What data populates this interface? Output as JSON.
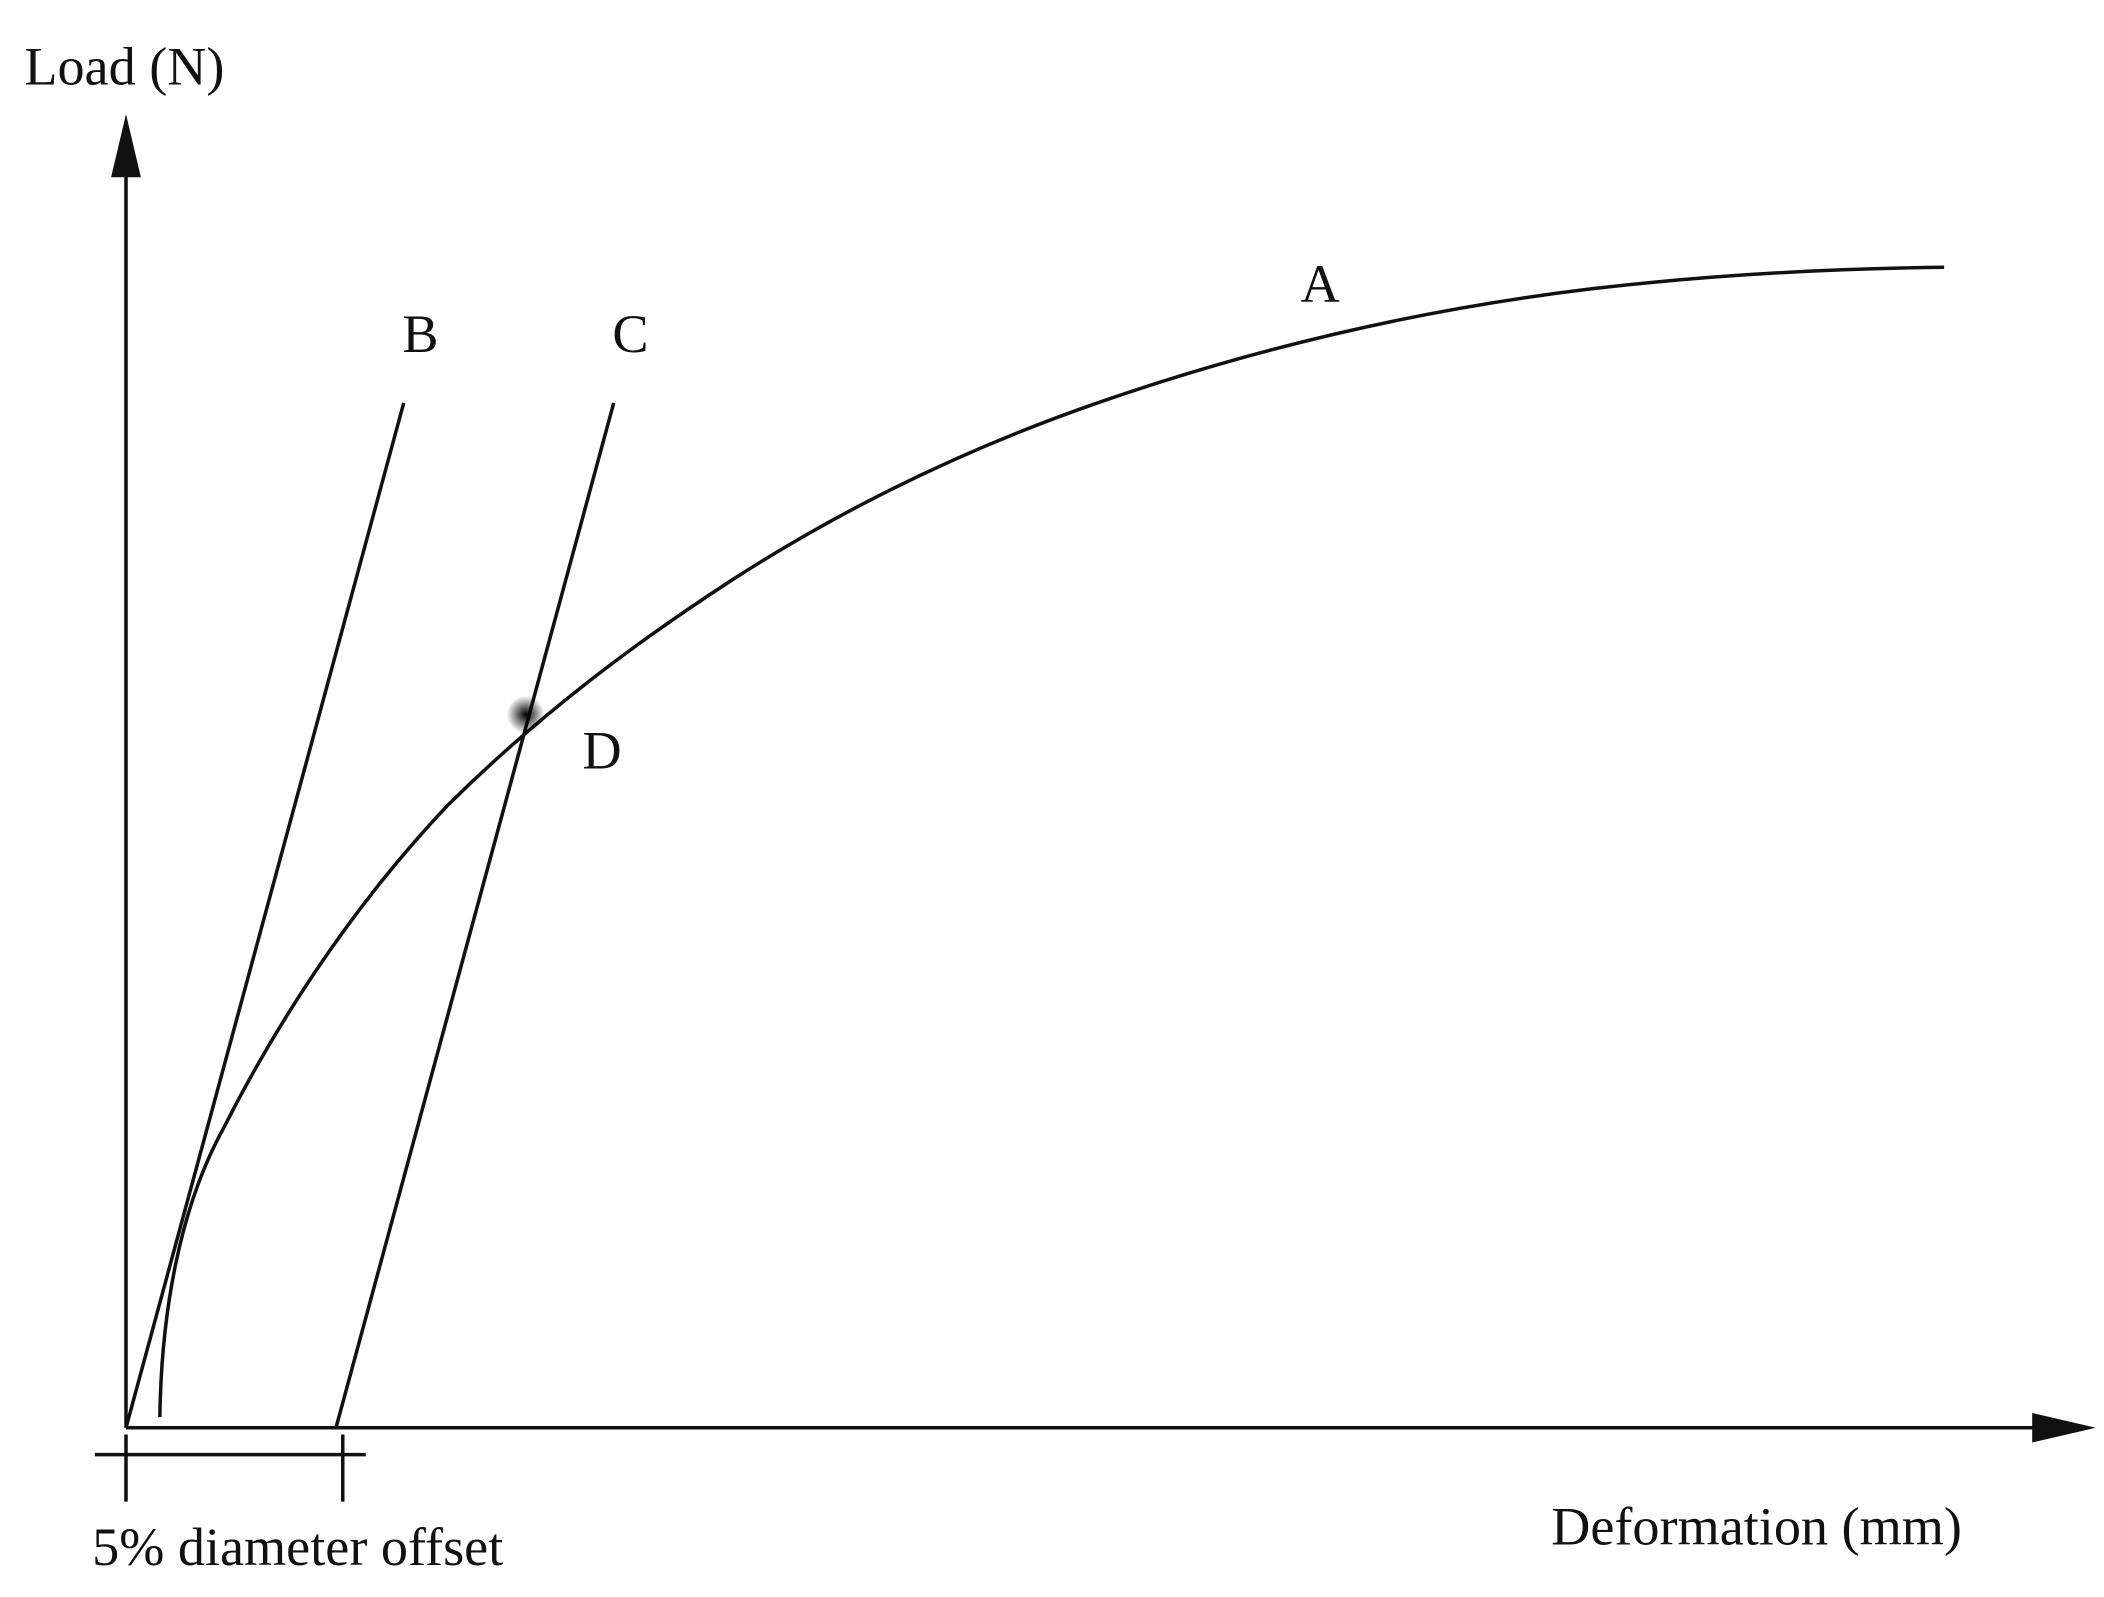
{
  "axes": {
    "y_label": "Load (N)",
    "x_label": "Deformation (mm)"
  },
  "curves": [
    {
      "label": "A"
    },
    {
      "label": "B"
    },
    {
      "label": "C"
    }
  ],
  "point": {
    "label": "D"
  },
  "offset": {
    "label": "5% diameter offset"
  }
}
